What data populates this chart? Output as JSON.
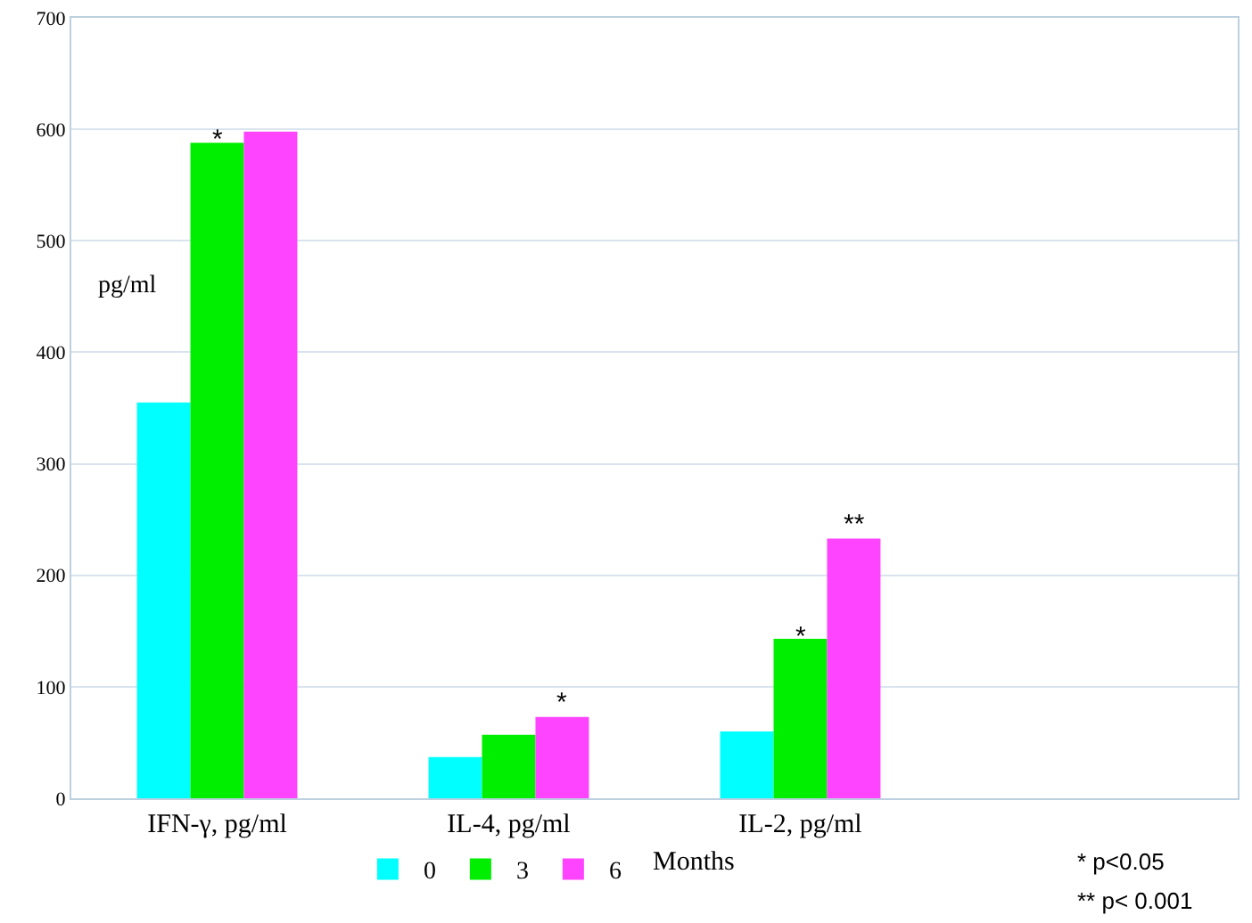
{
  "chart_data": {
    "type": "bar",
    "ylabel": "pg/ml",
    "legend_title": "Months",
    "categories": [
      "IFN-γ, pg/ml",
      "IL-4, pg/ml",
      "IL-2, pg/ml",
      null
    ],
    "series": [
      {
        "name": "0",
        "color": "#00ffff",
        "values": [
          355,
          37,
          60,
          null
        ]
      },
      {
        "name": "3",
        "color": "#00ee00",
        "values": [
          588,
          57,
          143,
          null
        ]
      },
      {
        "name": "6",
        "color": "#ff44ff",
        "values": [
          598,
          73,
          233,
          null
        ]
      }
    ],
    "ylim": [
      0,
      700
    ],
    "yticks": [
      0,
      100,
      200,
      300,
      400,
      500,
      600,
      700
    ],
    "grid": "y",
    "legend": "bottom",
    "annotations": [
      {
        "text": "*",
        "x": "IFN-γ, pg/ml",
        "y": 588
      },
      "*",
      {
        "text": "*",
        "x": "IL-2, pg/ml",
        "y": 143
      },
      "**",
      "* p<0.05",
      "** p< 0.001"
    ]
  }
}
